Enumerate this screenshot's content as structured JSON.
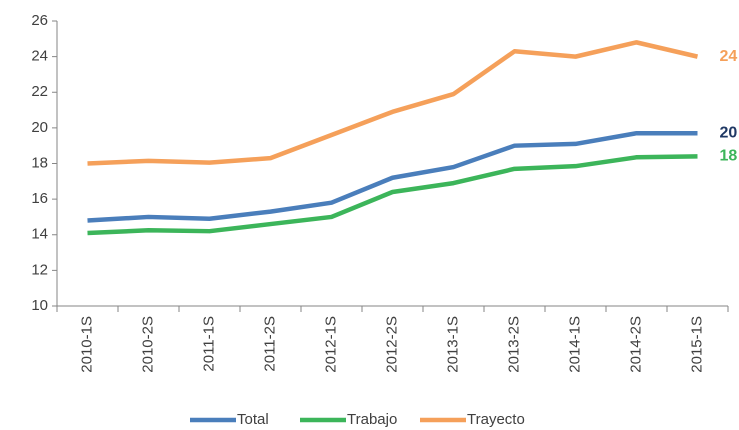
{
  "chart_data": {
    "type": "line",
    "categories": [
      "2010-1S",
      "2010-2S",
      "2011-1S",
      "2011-2S",
      "2012-1S",
      "2012-2S",
      "2013-1S",
      "2013-2S",
      "2014-1S",
      "2014-2S",
      "2015-1S"
    ],
    "series": [
      {
        "name": "Total",
        "color": "#4a7ebb",
        "label_color": "#1f3864",
        "values": [
          14.8,
          15.0,
          14.9,
          15.3,
          15.8,
          17.2,
          17.8,
          19.0,
          19.1,
          19.7,
          19.7
        ],
        "value_labels": [
          null,
          null,
          null,
          null,
          null,
          null,
          null,
          null,
          null,
          null,
          "20"
        ]
      },
      {
        "name": "Trabajo",
        "color": "#3cb55a",
        "label_color": "#3cb55a",
        "values": [
          14.1,
          14.25,
          14.2,
          14.6,
          15.0,
          16.4,
          16.9,
          17.7,
          17.85,
          18.35,
          18.4
        ],
        "value_labels": [
          null,
          null,
          null,
          null,
          null,
          null,
          null,
          null,
          null,
          null,
          "18"
        ]
      },
      {
        "name": "Trayecto",
        "color": "#f5a05a",
        "label_color": "#f5a05a",
        "values": [
          18.0,
          18.15,
          18.05,
          18.3,
          19.6,
          20.9,
          21.9,
          24.3,
          24.0,
          24.8,
          24.0
        ],
        "value_labels": [
          null,
          null,
          null,
          null,
          null,
          null,
          null,
          null,
          null,
          null,
          "24"
        ]
      }
    ],
    "ylim": [
      10,
      26
    ],
    "yticks": [
      10,
      12,
      14,
      16,
      18,
      20,
      22,
      24,
      26
    ],
    "grid": false,
    "legend": "bottom"
  }
}
